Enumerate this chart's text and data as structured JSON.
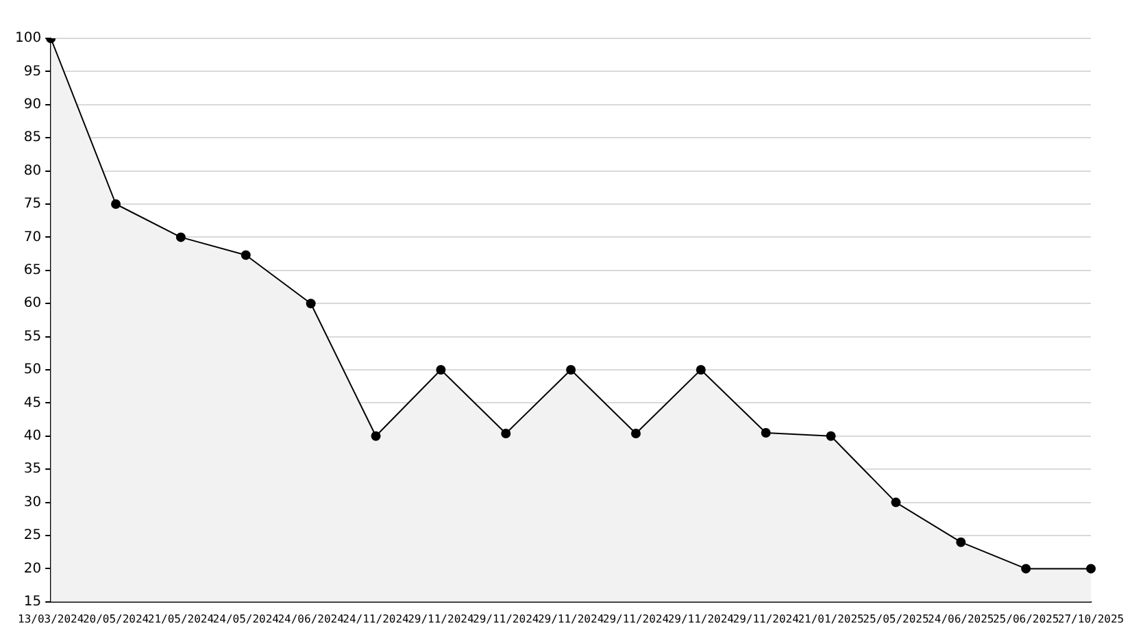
{
  "chart_data": {
    "type": "area",
    "categories": [
      "13/03/2024",
      "20/05/2024",
      "21/05/2024",
      "24/05/2024",
      "24/06/2024",
      "24/11/2024",
      "29/11/2024",
      "29/11/2024",
      "29/11/2024",
      "29/11/2024",
      "29/11/2024",
      "29/11/2024",
      "21/01/2025",
      "25/05/2025",
      "24/06/2025",
      "25/06/2025",
      "27/10/2025"
    ],
    "series": [
      {
        "color": "#000000",
        "values": [
          100,
          75,
          70,
          67.3,
          60,
          40,
          50,
          40.4,
          50,
          40.4,
          50,
          40.5,
          40,
          30,
          24,
          20,
          20
        ]
      }
    ],
    "ylim": [
      15,
      100
    ],
    "yticks": [
      15,
      20,
      25,
      30,
      35,
      40,
      45,
      50,
      55,
      60,
      65,
      70,
      75,
      80,
      85,
      90,
      95,
      100
    ],
    "grid": "y",
    "marker": "circle",
    "line_style": "solid",
    "legend": false
  }
}
